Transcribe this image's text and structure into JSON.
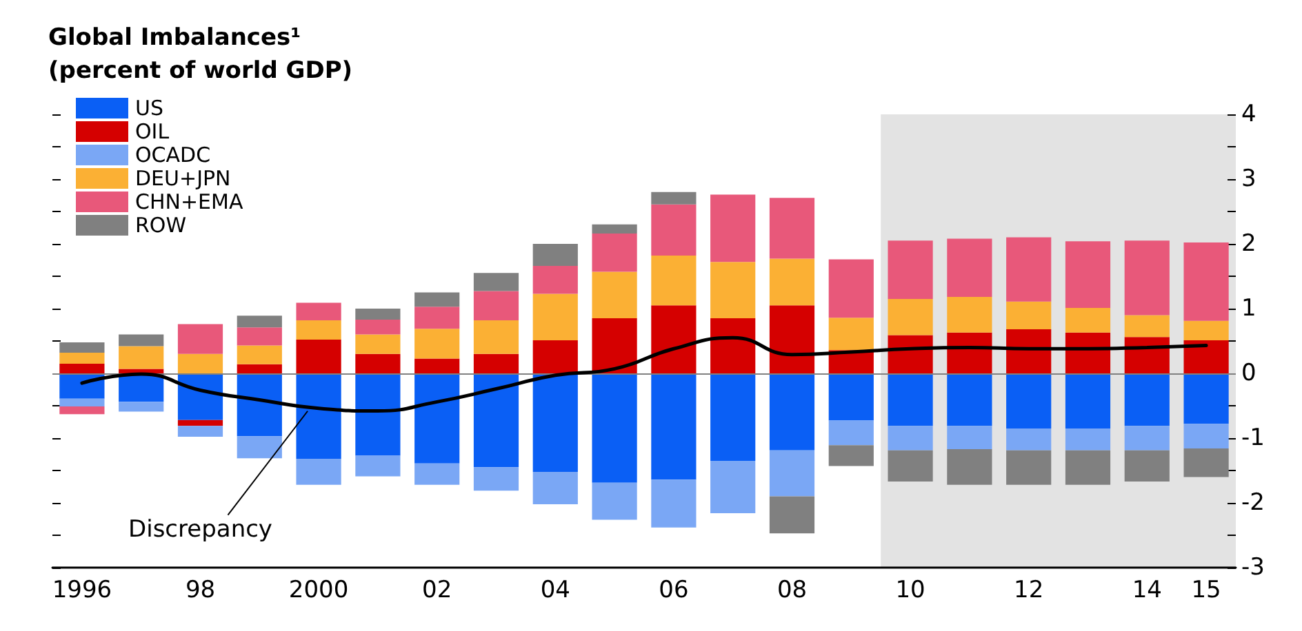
{
  "chart_data": {
    "type": "bar",
    "title": "Global Imbalances¹",
    "subtitle": "(percent of world GDP)",
    "stacked": true,
    "categories": [
      "1996",
      null,
      "98",
      null,
      "2000",
      null,
      "02",
      null,
      "04",
      null,
      "06",
      null,
      "08",
      null,
      "10",
      null,
      "12",
      null,
      "14",
      "15"
    ],
    "series": [
      {
        "name": "US",
        "color": "#0a5ff5",
        "values": [
          -0.39,
          -0.44,
          -0.72,
          -0.97,
          -1.32,
          -1.27,
          -1.39,
          -1.45,
          -1.52,
          -1.69,
          -1.64,
          -1.35,
          -1.19,
          -0.73,
          -0.81,
          -0.81,
          -0.85,
          -0.85,
          -0.81,
          -0.78
        ]
      },
      {
        "name": "OIL",
        "color": "#d50000",
        "values": [
          0.15,
          0.07,
          -0.09,
          0.14,
          0.52,
          0.3,
          0.23,
          0.3,
          0.51,
          0.85,
          1.05,
          0.85,
          1.05,
          0.36,
          0.59,
          0.63,
          0.68,
          0.63,
          0.56,
          0.51
        ]
      },
      {
        "name": "OCADC",
        "color": "#7aa7f5",
        "values": [
          -0.12,
          -0.15,
          -0.17,
          -0.34,
          -0.4,
          -0.32,
          -0.33,
          -0.36,
          -0.5,
          -0.57,
          -0.74,
          -0.81,
          -0.71,
          -0.38,
          -0.38,
          -0.36,
          -0.34,
          -0.34,
          -0.38,
          -0.38
        ]
      },
      {
        "name": "DEU+JPN",
        "color": "#fbb034",
        "values": [
          0.17,
          0.35,
          0.3,
          0.29,
          0.3,
          0.3,
          0.46,
          0.52,
          0.72,
          0.72,
          0.77,
          0.87,
          0.72,
          0.5,
          0.56,
          0.55,
          0.43,
          0.38,
          0.34,
          0.3
        ]
      },
      {
        "name": "CHN+EMA",
        "color": "#e8587a",
        "values": [
          -0.12,
          null,
          0.46,
          0.28,
          0.27,
          0.23,
          0.34,
          0.45,
          0.43,
          0.59,
          0.79,
          1.04,
          0.94,
          0.9,
          0.9,
          0.9,
          0.99,
          1.03,
          1.15,
          1.21
        ]
      },
      {
        "name": "ROW",
        "color": "#808080",
        "values": [
          0.16,
          0.18,
          null,
          0.18,
          null,
          0.17,
          0.22,
          0.28,
          0.34,
          0.14,
          0.19,
          null,
          -0.57,
          -0.32,
          -0.48,
          -0.55,
          -0.53,
          -0.53,
          -0.48,
          -0.44
        ]
      },
      {
        "name": "Discrepancy",
        "type": "line",
        "color": "#000000",
        "marker": "none",
        "values": [
          -0.15,
          -0.01,
          -0.26,
          -0.41,
          -0.54,
          -0.58,
          -0.44,
          -0.24,
          -0.03,
          0.07,
          0.38,
          0.55,
          0.29,
          0.33,
          0.38,
          0.4,
          0.38,
          0.38,
          0.4,
          0.43
        ]
      }
    ],
    "ylim": [
      -3,
      4
    ],
    "yticks": [
      -3,
      {
        "value": -2.5,
        "label": null
      },
      -2,
      {
        "value": -1.5,
        "label": null
      },
      -1,
      {
        "value": -0.5,
        "label": null
      },
      0,
      {
        "value": 0.5,
        "label": null
      },
      1,
      {
        "value": 1.5,
        "label": null
      },
      2,
      {
        "value": 2.5,
        "label": null
      },
      3,
      {
        "value": 3.5,
        "label": null
      },
      4
    ],
    "ref_lines": [
      {
        "axis": "y",
        "value": 0,
        "color": "#808080"
      }
    ],
    "bands": [
      {
        "axis": "x",
        "from": "10",
        "to": "15",
        "color": "#e3e3e3"
      }
    ],
    "legend": "top left",
    "grid": false
  }
}
